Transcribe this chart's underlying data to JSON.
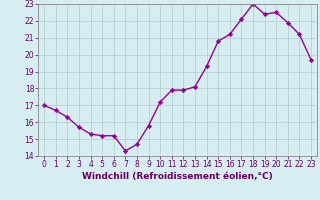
{
  "x": [
    0,
    1,
    2,
    3,
    4,
    5,
    6,
    7,
    8,
    9,
    10,
    11,
    12,
    13,
    14,
    15,
    16,
    17,
    18,
    19,
    20,
    21,
    22,
    23
  ],
  "y": [
    17.0,
    16.7,
    16.3,
    15.7,
    15.3,
    15.2,
    15.2,
    14.3,
    14.7,
    15.8,
    17.2,
    17.9,
    17.9,
    18.1,
    19.3,
    20.8,
    21.2,
    22.1,
    23.0,
    22.4,
    22.5,
    21.9,
    21.2,
    19.7
  ],
  "line_color": "#990099",
  "marker": "D",
  "markersize": 2.2,
  "linewidth": 1.0,
  "bg_color": "#d6eef2",
  "grid_color": "#aecccc",
  "xlabel": "Windchill (Refroidissement éolien,°C)",
  "ylim": [
    14,
    23
  ],
  "xlim_min": -0.5,
  "xlim_max": 23.5,
  "yticks": [
    14,
    15,
    16,
    17,
    18,
    19,
    20,
    21,
    22,
    23
  ],
  "xticks": [
    0,
    1,
    2,
    3,
    4,
    5,
    6,
    7,
    8,
    9,
    10,
    11,
    12,
    13,
    14,
    15,
    16,
    17,
    18,
    19,
    20,
    21,
    22,
    23
  ],
  "tick_label_fontsize": 5.5,
  "xlabel_fontsize": 6.5,
  "tick_color": "#660066",
  "axis_color": "#660066",
  "spine_color": "#888888"
}
